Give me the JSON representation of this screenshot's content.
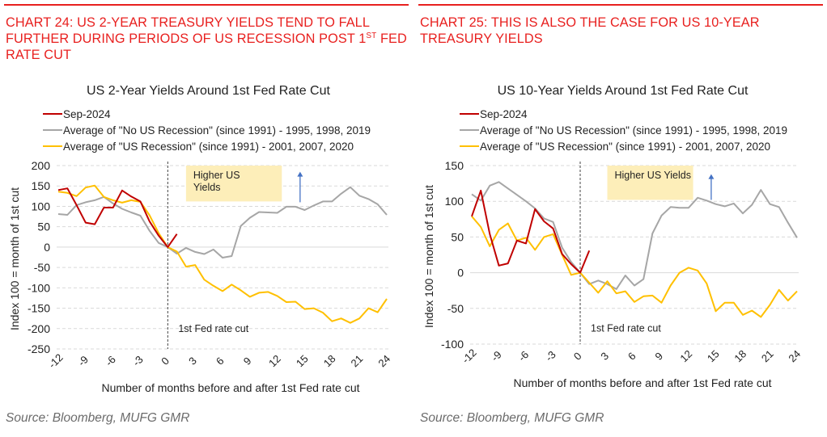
{
  "panels": [
    {
      "heading_main": "CHART 24: US 2-YEAR TREASURY YIELDS TEND TO FALL FURTHER DURING PERIODS OF US RECESSION POST 1",
      "heading_sup": "ST",
      "heading_tail": " FED RATE CUT",
      "source": "Source: Bloomberg, MUFG GMR"
    },
    {
      "heading_main": "CHART 25: THIS IS ALSO THE CASE FOR US 10-YEAR TREASURY YIELDS",
      "heading_sup": "",
      "heading_tail": "",
      "source": "Source: Bloomberg, MUFG GMR"
    }
  ],
  "colors": {
    "heading": "#e8201f",
    "sep2024": "#c00000",
    "no_recession": "#a6a6a6",
    "recession": "#ffc000",
    "annotation_box": "#fdeeb9",
    "arrow": "#4472c4"
  },
  "chart_data": [
    {
      "type": "line",
      "title": "US 2-Year Yields Around 1st Fed Rate Cut",
      "xlabel": "Number of months before and after 1st Fed rate cut",
      "ylabel": "Index 100 = month of 1st cut",
      "xlim": [
        -12,
        24
      ],
      "ylim": [
        -250,
        200
      ],
      "x_ticks": [
        -12,
        -9,
        -6,
        -3,
        0,
        3,
        6,
        9,
        12,
        15,
        18,
        21,
        24
      ],
      "y_ticks": [
        200,
        150,
        100,
        50,
        0,
        -50,
        -100,
        -150,
        -200,
        -250
      ],
      "grid": true,
      "legend_position": "top-left",
      "annotations": {
        "box_text": "Higher US Yields",
        "box_lines": [
          "Higher US",
          "Yields"
        ],
        "cut_line_label": "1st Fed rate cut",
        "cut_x": 0
      },
      "series": [
        {
          "name": "Sep-2024",
          "color_key": "sep2024",
          "x": [
            -12,
            -11,
            -10,
            -9,
            -8,
            -7,
            -6,
            -5,
            -4,
            -3,
            -2,
            -1,
            0,
            1
          ],
          "values": [
            140,
            144,
            103,
            60,
            56,
            97,
            97,
            139,
            124,
            112,
            63,
            28,
            0,
            32
          ]
        },
        {
          "name": "Average of \"No US Recession\" (since 1991) - 1995, 1998, 2019",
          "color_key": "no_recession",
          "x": [
            -12,
            -11,
            -10,
            -9,
            -8,
            -7,
            -6,
            -5,
            -4,
            -3,
            -2,
            -1,
            0,
            1,
            2,
            3,
            4,
            5,
            6,
            7,
            8,
            9,
            10,
            11,
            12,
            13,
            14,
            15,
            16,
            17,
            18,
            19,
            20,
            21,
            22,
            23,
            24
          ],
          "values": [
            81,
            79,
            103,
            110,
            115,
            123,
            107,
            94,
            85,
            77,
            40,
            10,
            0,
            -16,
            -2,
            -12,
            -17,
            -6,
            -26,
            -22,
            52,
            72,
            86,
            85,
            84,
            99,
            99,
            91,
            102,
            112,
            112,
            131,
            147,
            126,
            118,
            105,
            79
          ]
        },
        {
          "name": "Average of \"US Recession\" (since 1991) - 2001, 2007, 2020",
          "color_key": "recession",
          "x": [
            -12,
            -11,
            -10,
            -9,
            -8,
            -7,
            -6,
            -5,
            -4,
            -3,
            -2,
            -1,
            0,
            1,
            2,
            3,
            4,
            5,
            6,
            7,
            8,
            9,
            10,
            11,
            12,
            13,
            14,
            15,
            16,
            17,
            18,
            19,
            20,
            21,
            22,
            23,
            24
          ],
          "values": [
            136,
            133,
            125,
            146,
            151,
            123,
            115,
            109,
            115,
            111,
            78,
            34,
            0,
            -11,
            -48,
            -44,
            -80,
            -95,
            -108,
            -92,
            -106,
            -122,
            -112,
            -110,
            -120,
            -135,
            -134,
            -152,
            -150,
            -161,
            -182,
            -175,
            -186,
            -175,
            -150,
            -160,
            -127
          ]
        }
      ]
    },
    {
      "type": "line",
      "title": "US 10-Year Yields Around 1st Fed Rate Cut",
      "xlabel": "Number of months before and after 1st Fed rate cut",
      "ylabel": "Index 100 = month of 1st cut",
      "xlim": [
        -12,
        24
      ],
      "ylim": [
        -100,
        150
      ],
      "x_ticks": [
        -12,
        -9,
        -6,
        -3,
        0,
        3,
        6,
        9,
        12,
        15,
        18,
        21,
        24
      ],
      "y_ticks": [
        150,
        100,
        50,
        0,
        -50,
        -100
      ],
      "grid": true,
      "legend_position": "top-left",
      "annotations": {
        "box_text": "Higher US Yields",
        "box_lines": [
          "Higher US Yields"
        ],
        "cut_line_label": "1st Fed rate cut",
        "cut_x": 0
      },
      "series": [
        {
          "name": "Sep-2024",
          "color_key": "sep2024",
          "x": [
            -12,
            -11,
            -10,
            -9,
            -8,
            -7,
            -6,
            -5,
            -4,
            -3,
            -2,
            -1,
            0,
            1
          ],
          "values": [
            79,
            115,
            54,
            10,
            13,
            45,
            41,
            89,
            72,
            62,
            26,
            12,
            0,
            31
          ]
        },
        {
          "name": "Average of \"No US Recession\" (since 1991) - 1995, 1998, 2019",
          "color_key": "no_recession",
          "x": [
            -12,
            -11,
            -10,
            -9,
            -8,
            -7,
            -6,
            -5,
            -4,
            -3,
            -2,
            -1,
            0,
            1,
            2,
            3,
            4,
            5,
            6,
            7,
            8,
            9,
            10,
            11,
            12,
            13,
            14,
            15,
            16,
            17,
            18,
            19,
            20,
            21,
            22,
            23,
            24
          ],
          "values": [
            110,
            101,
            122,
            127,
            118,
            109,
            100,
            90,
            76,
            71,
            35,
            15,
            0,
            -16,
            -11,
            -16,
            -23,
            -4,
            -18,
            -9,
            55,
            80,
            92,
            91,
            91,
            105,
            101,
            96,
            93,
            97,
            83,
            95,
            116,
            96,
            92,
            70,
            49
          ]
        },
        {
          "name": "Average of \"US Recession\" (since 1991) - 2001, 2007, 2020",
          "color_key": "recession",
          "x": [
            -12,
            -11,
            -10,
            -9,
            -8,
            -7,
            -6,
            -5,
            -4,
            -3,
            -2,
            -1,
            0,
            1,
            2,
            3,
            4,
            5,
            6,
            7,
            8,
            9,
            10,
            11,
            12,
            13,
            14,
            15,
            16,
            17,
            18,
            19,
            20,
            21,
            22,
            23,
            24
          ],
          "values": [
            79,
            64,
            37,
            60,
            69,
            45,
            49,
            32,
            50,
            54,
            25,
            -3,
            0,
            -14,
            -28,
            -12,
            -29,
            -26,
            -41,
            -33,
            -32,
            -42,
            -18,
            0,
            7,
            3,
            -15,
            -54,
            -42,
            -42,
            -59,
            -53,
            -62,
            -45,
            -24,
            -39,
            -26
          ]
        }
      ]
    }
  ]
}
